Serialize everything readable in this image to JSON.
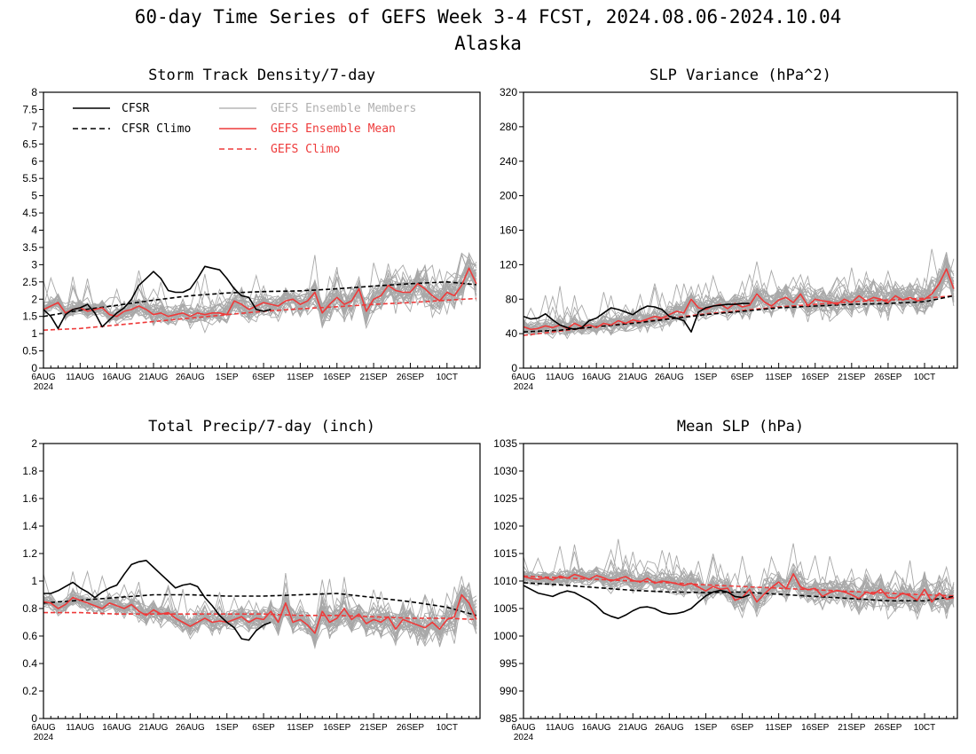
{
  "figure": {
    "title_line1": "60-day Time Series of GEFS Week 3-4 FCST, 2024.08.06-2024.10.04",
    "title_line2": "Alaska"
  },
  "legend": {
    "cfsr": "CFSR",
    "cfsr_climo": "CFSR Climo",
    "gefs_members": "GEFS Ensemble Members",
    "gefs_mean": "GEFS Ensemble Mean",
    "gefs_climo": "GEFS Climo"
  },
  "colors": {
    "cfsr": "#000000",
    "members": "#a8a8a8",
    "gefs_mean": "#ee3a3a",
    "gefs_members_label": "#b0b0b0"
  },
  "x_axis": {
    "tick_labels": [
      "6AUG",
      "11AUG",
      "16AUG",
      "21AUG",
      "26AUG",
      "1SEP",
      "6SEP",
      "11SEP",
      "16SEP",
      "21SEP",
      "26SEP",
      "10CT"
    ],
    "year_label": "2024"
  },
  "chart_data": [
    {
      "type": "line",
      "title": "Storm Track Density/7-day",
      "ylim": [
        0,
        8
      ],
      "ytick_labels": [
        "0",
        "0.5",
        "1",
        "1.5",
        "2",
        "2.5",
        "3",
        "3.5",
        "4",
        "4.5",
        "5",
        "5.5",
        "6",
        "6.5",
        "7",
        "7.5",
        "8"
      ],
      "members_count": 30,
      "series": [
        {
          "name": "CFSR",
          "x": [
            0,
            1,
            2,
            3,
            4,
            5,
            6,
            7,
            8,
            9,
            10,
            11,
            12,
            13,
            14,
            15,
            16,
            17,
            18,
            19,
            20,
            21,
            22,
            23,
            24,
            25,
            26,
            27,
            28,
            29,
            30,
            31
          ],
          "values": [
            1.7,
            1.5,
            1.15,
            1.55,
            1.7,
            1.75,
            1.85,
            1.6,
            1.2,
            1.4,
            1.6,
            1.75,
            2.0,
            2.4,
            2.6,
            2.8,
            2.6,
            2.25,
            2.2,
            2.2,
            2.3,
            2.6,
            2.95,
            2.9,
            2.85,
            2.6,
            2.3,
            2.1,
            2.05,
            1.7,
            1.65,
            1.7
          ]
        },
        {
          "name": "CFSR Climo",
          "x": [
            0,
            5,
            10,
            15,
            20,
            25,
            30,
            35,
            40,
            45,
            50,
            55,
            59
          ],
          "values": [
            1.5,
            1.68,
            1.82,
            1.97,
            2.1,
            2.18,
            2.22,
            2.24,
            2.3,
            2.38,
            2.45,
            2.5,
            2.42
          ]
        },
        {
          "name": "GEFS Ensemble Mean",
          "x": [
            0,
            1,
            2,
            3,
            4,
            5,
            6,
            7,
            8,
            9,
            10,
            11,
            12,
            13,
            14,
            15,
            16,
            17,
            18,
            19,
            20,
            21,
            22,
            23,
            24,
            25,
            26,
            27,
            28,
            29,
            30,
            31,
            32,
            33,
            34,
            35,
            36,
            37,
            38,
            39,
            40,
            41,
            42,
            43,
            44,
            45,
            46,
            47,
            48,
            49,
            50,
            51,
            52,
            53,
            54,
            55,
            56,
            57,
            58,
            59
          ],
          "values": [
            1.7,
            1.8,
            1.9,
            1.6,
            1.7,
            1.75,
            1.65,
            1.7,
            1.75,
            1.55,
            1.5,
            1.65,
            1.7,
            1.8,
            1.7,
            1.55,
            1.6,
            1.5,
            1.55,
            1.6,
            1.5,
            1.6,
            1.55,
            1.6,
            1.6,
            1.55,
            1.95,
            1.85,
            1.7,
            1.8,
            1.9,
            1.85,
            1.8,
            1.95,
            2.0,
            1.85,
            1.95,
            2.2,
            1.6,
            1.85,
            2.05,
            1.85,
            1.95,
            2.3,
            1.65,
            2.0,
            2.1,
            2.4,
            2.25,
            2.2,
            2.2,
            2.45,
            2.3,
            2.1,
            1.95,
            2.2,
            2.1,
            2.4,
            2.9,
            2.45
          ]
        },
        {
          "name": "GEFS Climo",
          "x": [
            0,
            5,
            10,
            15,
            20,
            25,
            30,
            35,
            40,
            45,
            50,
            55,
            59
          ],
          "values": [
            1.1,
            1.15,
            1.25,
            1.35,
            1.45,
            1.55,
            1.65,
            1.72,
            1.78,
            1.85,
            1.9,
            1.97,
            2.02
          ]
        }
      ]
    },
    {
      "type": "line",
      "title": "SLP Variance (hPa^2)",
      "ylim": [
        0,
        320
      ],
      "ytick_labels": [
        "0",
        "40",
        "80",
        "120",
        "160",
        "200",
        "240",
        "280",
        "320"
      ],
      "members_count": 30,
      "series": [
        {
          "name": "CFSR",
          "x": [
            0,
            1,
            2,
            3,
            4,
            5,
            6,
            7,
            8,
            9,
            10,
            11,
            12,
            13,
            14,
            15,
            16,
            17,
            18,
            19,
            20,
            21,
            22,
            23,
            24,
            25,
            26,
            27,
            28,
            29,
            30,
            31
          ],
          "values": [
            60,
            57,
            58,
            63,
            56,
            50,
            47,
            45,
            47,
            55,
            58,
            64,
            70,
            68,
            65,
            62,
            68,
            72,
            71,
            68,
            60,
            58,
            55,
            42,
            65,
            70,
            72,
            73,
            74,
            74,
            75,
            75
          ]
        },
        {
          "name": "CFSR Climo",
          "x": [
            0,
            5,
            10,
            15,
            20,
            25,
            30,
            35,
            40,
            45,
            50,
            55,
            59
          ],
          "values": [
            42,
            44,
            48,
            52,
            57,
            62,
            66,
            70,
            72,
            74,
            75,
            77,
            84
          ]
        },
        {
          "name": "GEFS Ensemble Mean",
          "x": [
            0,
            1,
            2,
            3,
            4,
            5,
            6,
            7,
            8,
            9,
            10,
            11,
            12,
            13,
            14,
            15,
            16,
            17,
            18,
            19,
            20,
            21,
            22,
            23,
            24,
            25,
            26,
            27,
            28,
            29,
            30,
            31,
            32,
            33,
            34,
            35,
            36,
            37,
            38,
            39,
            40,
            41,
            42,
            43,
            44,
            45,
            46,
            47,
            48,
            49,
            50,
            51,
            52,
            53,
            54,
            55,
            56,
            57,
            58,
            59
          ],
          "values": [
            48,
            45,
            46,
            49,
            47,
            50,
            46,
            52,
            48,
            50,
            47,
            52,
            50,
            55,
            52,
            56,
            54,
            57,
            60,
            58,
            62,
            66,
            64,
            80,
            70,
            68,
            72,
            74,
            69,
            75,
            71,
            73,
            86,
            77,
            72,
            79,
            82,
            76,
            86,
            72,
            80,
            78,
            77,
            74,
            80,
            76,
            84,
            78,
            82,
            80,
            76,
            84,
            79,
            82,
            78,
            80,
            86,
            98,
            115,
            92
          ]
        },
        {
          "name": "GEFS Climo",
          "x": [
            0,
            5,
            10,
            15,
            20,
            25,
            30,
            35,
            40,
            45,
            50,
            55,
            59
          ],
          "values": [
            38,
            43,
            48,
            53,
            58,
            63,
            67,
            71,
            74,
            77,
            79,
            81,
            84
          ]
        }
      ]
    },
    {
      "type": "line",
      "title": "Total Precip/7-day (inch)",
      "ylim": [
        0,
        2
      ],
      "ytick_labels": [
        "0",
        "0.2",
        "0.4",
        "0.6",
        "0.8",
        "1",
        "1.2",
        "1.4",
        "1.6",
        "1.8",
        "2"
      ],
      "members_count": 30,
      "series": [
        {
          "name": "CFSR",
          "x": [
            0,
            1,
            2,
            3,
            4,
            5,
            6,
            7,
            8,
            9,
            10,
            11,
            12,
            13,
            14,
            15,
            16,
            17,
            18,
            19,
            20,
            21,
            22,
            23,
            24,
            25,
            26,
            27,
            28,
            29,
            30,
            31
          ],
          "values": [
            0.91,
            0.91,
            0.93,
            0.96,
            0.99,
            0.95,
            0.92,
            0.88,
            0.92,
            0.95,
            0.97,
            1.05,
            1.12,
            1.14,
            1.15,
            1.1,
            1.05,
            1.0,
            0.95,
            0.97,
            0.98,
            0.96,
            0.88,
            0.82,
            0.75,
            0.7,
            0.66,
            0.58,
            0.57,
            0.64,
            0.68,
            0.7
          ]
        },
        {
          "name": "CFSR Climo",
          "x": [
            0,
            5,
            10,
            15,
            20,
            25,
            30,
            35,
            40,
            45,
            50,
            55,
            59
          ],
          "values": [
            0.84,
            0.86,
            0.88,
            0.9,
            0.9,
            0.89,
            0.89,
            0.9,
            0.91,
            0.88,
            0.85,
            0.81,
            0.75
          ]
        },
        {
          "name": "GEFS Ensemble Mean",
          "x": [
            0,
            1,
            2,
            3,
            4,
            5,
            6,
            7,
            8,
            9,
            10,
            11,
            12,
            13,
            14,
            15,
            16,
            17,
            18,
            19,
            20,
            21,
            22,
            23,
            24,
            25,
            26,
            27,
            28,
            29,
            30,
            31,
            32,
            33,
            34,
            35,
            36,
            37,
            38,
            39,
            40,
            41,
            42,
            43,
            44,
            45,
            46,
            47,
            48,
            49,
            50,
            51,
            52,
            53,
            54,
            55,
            56,
            57,
            58,
            59
          ],
          "values": [
            0.85,
            0.84,
            0.8,
            0.83,
            0.88,
            0.86,
            0.84,
            0.82,
            0.8,
            0.84,
            0.82,
            0.8,
            0.83,
            0.78,
            0.75,
            0.79,
            0.76,
            0.77,
            0.73,
            0.7,
            0.67,
            0.7,
            0.73,
            0.7,
            0.71,
            0.7,
            0.72,
            0.74,
            0.7,
            0.73,
            0.72,
            0.78,
            0.7,
            0.84,
            0.7,
            0.72,
            0.68,
            0.62,
            0.78,
            0.7,
            0.73,
            0.8,
            0.72,
            0.76,
            0.69,
            0.72,
            0.7,
            0.74,
            0.65,
            0.72,
            0.7,
            0.68,
            0.66,
            0.7,
            0.65,
            0.72,
            0.74,
            0.9,
            0.84,
            0.72
          ]
        },
        {
          "name": "GEFS Climo",
          "x": [
            0,
            5,
            10,
            15,
            20,
            25,
            30,
            35,
            40,
            45,
            50,
            55,
            59
          ],
          "values": [
            0.77,
            0.77,
            0.76,
            0.76,
            0.76,
            0.76,
            0.76,
            0.75,
            0.75,
            0.74,
            0.73,
            0.73,
            0.72
          ]
        }
      ]
    },
    {
      "type": "line",
      "title": "Mean SLP (hPa)",
      "ylim": [
        985,
        1035
      ],
      "ytick_labels": [
        "985",
        "990",
        "995",
        "1000",
        "1005",
        "1010",
        "1015",
        "1020",
        "1025",
        "1030",
        "1035"
      ],
      "members_count": 30,
      "series": [
        {
          "name": "CFSR",
          "x": [
            0,
            1,
            2,
            3,
            4,
            5,
            6,
            7,
            8,
            9,
            10,
            11,
            12,
            13,
            14,
            15,
            16,
            17,
            18,
            19,
            20,
            21,
            22,
            23,
            24,
            25,
            26,
            27,
            28,
            29,
            30,
            31
          ],
          "values": [
            1009.2,
            1008.5,
            1007.8,
            1007.5,
            1007.2,
            1007.8,
            1008.2,
            1007.9,
            1007.2,
            1006.5,
            1005.5,
            1004.2,
            1003.6,
            1003.2,
            1003.8,
            1004.6,
            1005.2,
            1005.3,
            1005.0,
            1004.3,
            1004.0,
            1004.1,
            1004.4,
            1005.0,
            1006.2,
            1007.3,
            1008.0,
            1008.3,
            1008.0,
            1007.2,
            1007.0,
            1007.5
          ]
        },
        {
          "name": "CFSR Climo",
          "x": [
            0,
            5,
            10,
            15,
            20,
            25,
            30,
            35,
            40,
            45,
            50,
            55,
            59
          ],
          "values": [
            1009.7,
            1009.3,
            1008.8,
            1008.3,
            1008.0,
            1007.9,
            1008.0,
            1007.6,
            1007.2,
            1006.8,
            1006.4,
            1006.4,
            1007.2
          ]
        },
        {
          "name": "GEFS Ensemble Mean",
          "x": [
            0,
            1,
            2,
            3,
            4,
            5,
            6,
            7,
            8,
            9,
            10,
            11,
            12,
            13,
            14,
            15,
            16,
            17,
            18,
            19,
            20,
            21,
            22,
            23,
            24,
            25,
            26,
            27,
            28,
            29,
            30,
            31,
            32,
            33,
            34,
            35,
            36,
            37,
            38,
            39,
            40,
            41,
            42,
            43,
            44,
            45,
            46,
            47,
            48,
            49,
            50,
            51,
            52,
            53,
            54,
            55,
            56,
            57,
            58,
            59
          ],
          "values": [
            1010.8,
            1010.5,
            1010.3,
            1010.6,
            1010.2,
            1010.9,
            1010.5,
            1011.2,
            1010.8,
            1010.3,
            1011.0,
            1010.6,
            1010.0,
            1010.4,
            1010.8,
            1010.1,
            1009.8,
            1010.5,
            1009.6,
            1010.0,
            1009.8,
            1009.5,
            1009.2,
            1009.6,
            1008.9,
            1008.2,
            1009.0,
            1008.5,
            1008.7,
            1006.5,
            1007.0,
            1008.5,
            1006.2,
            1007.6,
            1008.8,
            1009.8,
            1008.6,
            1011.3,
            1008.9,
            1008.4,
            1008.7,
            1007.2,
            1007.9,
            1008.3,
            1008.0,
            1007.5,
            1006.8,
            1008.0,
            1007.6,
            1008.5,
            1007.0,
            1006.9,
            1007.8,
            1007.3,
            1006.5,
            1008.5,
            1006.2,
            1007.8,
            1006.7,
            1007.0
          ]
        },
        {
          "name": "GEFS Climo",
          "x": [
            0,
            5,
            10,
            15,
            20,
            25,
            30,
            35,
            40,
            45,
            50,
            55,
            59
          ],
          "values": [
            1010.9,
            1010.6,
            1010.3,
            1010.0,
            1009.7,
            1009.3,
            1009.0,
            1008.7,
            1008.4,
            1008.1,
            1007.8,
            1007.5,
            1007.3
          ]
        }
      ]
    }
  ]
}
